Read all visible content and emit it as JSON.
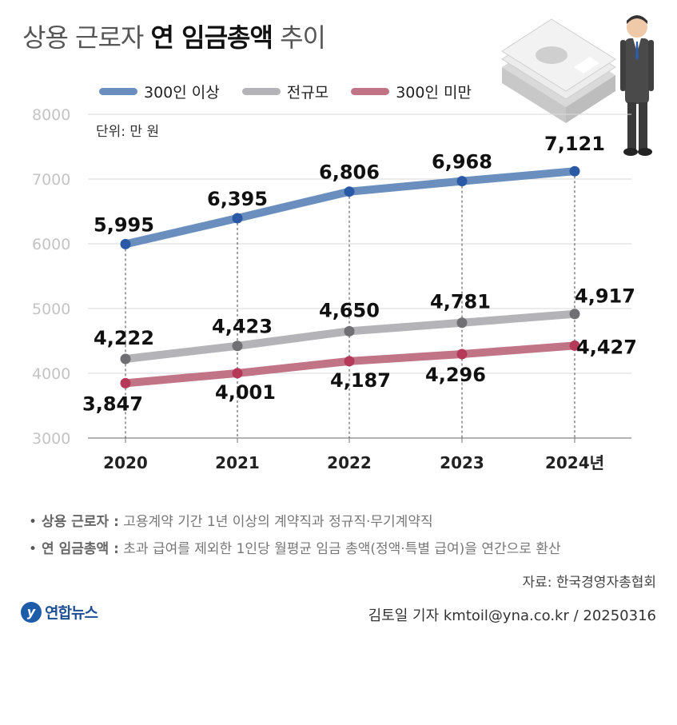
{
  "title": {
    "light": "상용 근로자",
    "bold": "연 임금총액",
    "suffix": "추이"
  },
  "unit_label": "단위: 만 원",
  "legend": [
    {
      "label": "300인 이상",
      "color": "#6a8fbf"
    },
    {
      "label": "전규모",
      "color": "#b4b4b8"
    },
    {
      "label": "300인 미만",
      "color": "#c07486"
    }
  ],
  "chart_data": {
    "type": "line",
    "categories": [
      "2020",
      "2021",
      "2022",
      "2023",
      "2024년"
    ],
    "ylim": [
      3000,
      8000
    ],
    "yticks": [
      "3000",
      "4000",
      "5000",
      "6000",
      "7000",
      "8000"
    ],
    "grid": true,
    "legend_position": "top",
    "series": [
      {
        "name": "300인 이상",
        "values": [
          5995,
          6395,
          6806,
          6968,
          7121
        ],
        "labels": [
          "5,995",
          "6,395",
          "6,806",
          "6,968",
          "7,121"
        ],
        "color": "#6a8fbf",
        "marker": "#2a5aa6"
      },
      {
        "name": "전규모",
        "values": [
          4222,
          4423,
          4650,
          4781,
          4917
        ],
        "labels": [
          "4,222",
          "4,423",
          "4,650",
          "4,781",
          "4,917"
        ],
        "color": "#b4b4b8",
        "marker": "#6f6f74"
      },
      {
        "name": "300인 미만",
        "values": [
          3847,
          4001,
          4187,
          4296,
          4427
        ],
        "labels": [
          "3,847",
          "4,001",
          "4,187",
          "4,296",
          "4,427"
        ],
        "color": "#c07486",
        "marker": "#b53a5a"
      }
    ]
  },
  "notes": [
    {
      "term": "상용 근로자 :",
      "text": "고용계약 기간 1년 이상의 계약직과 정규직·무기계약직"
    },
    {
      "term": "연 임금총액 :",
      "text": "초과 급여를 제외한 1인당 월평균 임금 총액(정액·특별 급여)을 연간으로 환산"
    }
  ],
  "source": "자료: 한국경영자총협회",
  "credit": "김토일 기자 kmtoil@yna.co.kr / 20250316",
  "logo": {
    "mark": "y",
    "text": "연합뉴스"
  },
  "illustration": [
    "money-stack-icon",
    "businessman-icon"
  ]
}
